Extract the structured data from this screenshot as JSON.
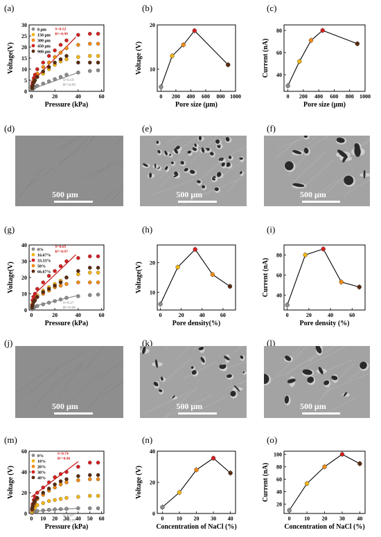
{
  "panels": {
    "a": "(a)",
    "b": "(b)",
    "c": "(c)",
    "d": "(d)",
    "e": "(e)",
    "f": "(f)",
    "g": "(g)",
    "h": "(h)",
    "i": "(i)",
    "j": "(j)",
    "k": "(k)",
    "l": "(l)",
    "m": "(m)",
    "n": "(n)",
    "o": "(o)"
  },
  "colors": {
    "gray": "#8c8c8c",
    "gold": "#f2b515",
    "orange": "#f08a12",
    "red": "#d42020",
    "brown": "#5a2a10",
    "fit_red": "#cc1111",
    "fit_gray": "#8c8c8c"
  },
  "sem_images": {
    "d": {
      "scale": "500 μm",
      "texture": "smooth"
    },
    "e": {
      "scale": "500 μm",
      "texture": "porous-dense"
    },
    "f": {
      "scale": "500 μm",
      "texture": "porous-large"
    },
    "j": {
      "scale": "500 μm",
      "texture": "smooth"
    },
    "k": {
      "scale": "500 μm",
      "texture": "porous-medium"
    },
    "l": {
      "scale": "500 μm",
      "texture": "porous-large"
    }
  },
  "chart_data": [
    {
      "id": "a",
      "type": "scatter",
      "xlabel": "Pressure (kPa)",
      "ylabel": "Voltage(V)",
      "xlim": [
        -2,
        62
      ],
      "ylim": [
        0,
        30
      ],
      "xticks": [
        0,
        20,
        40,
        60
      ],
      "yticks": [
        0,
        5,
        10,
        15,
        20,
        25,
        30
      ],
      "x": [
        0.5,
        1,
        2,
        3,
        5,
        10,
        15,
        20,
        25,
        30,
        40,
        50,
        57
      ],
      "series": [
        {
          "name": "0 μm",
          "color": "gray",
          "values": [
            0.5,
            1,
            1.5,
            2,
            2.5,
            3.5,
            4.5,
            5.5,
            6.5,
            7.5,
            8.5,
            9.2,
            9.5
          ]
        },
        {
          "name": "150 μm",
          "color": "gold",
          "values": [
            1.5,
            3,
            4,
            5,
            6.5,
            8,
            10,
            12,
            13.5,
            14.5,
            15.5,
            16,
            16
          ]
        },
        {
          "name": "300 μm",
          "color": "orange",
          "values": [
            2,
            3.5,
            5,
            6.5,
            8,
            11,
            13,
            15.5,
            17.5,
            19.5,
            21,
            21.5,
            21.5
          ]
        },
        {
          "name": "450 μm",
          "color": "red",
          "values": [
            2.5,
            4,
            6,
            7.5,
            10,
            13,
            16,
            18.5,
            21,
            23,
            25.5,
            26,
            26
          ]
        },
        {
          "name": "900 μm",
          "color": "brown",
          "values": [
            1.5,
            2.5,
            4,
            5,
            6.5,
            9,
            11,
            13,
            14.5,
            16,
            13,
            13,
            13
          ]
        }
      ],
      "fits": [
        {
          "color": "fit_red",
          "x": [
            0,
            38
          ],
          "y": [
            4,
            24.5
          ],
          "labels": [
            "S=0.52",
            "R²=0.99"
          ]
        },
        {
          "color": "fit_gray",
          "x": [
            0,
            40
          ],
          "y": [
            1,
            8.5
          ],
          "labels": [
            "S=0.19",
            "R²=0.99"
          ]
        }
      ],
      "legend": "top-left"
    },
    {
      "id": "b",
      "type": "line",
      "xlabel": "Pore size (μm)",
      "ylabel": "Voltage (V)",
      "xlim": [
        -50,
        1000
      ],
      "ylim": [
        5,
        20
      ],
      "xticks": [
        0,
        200,
        400,
        600,
        800,
        1000
      ],
      "yticks": [
        10,
        20
      ],
      "x": [
        0,
        150,
        300,
        450,
        900
      ],
      "colors": [
        "gray",
        "gold",
        "orange",
        "red",
        "brown"
      ],
      "values": [
        6,
        13,
        15.5,
        18.7,
        11
      ]
    },
    {
      "id": "c",
      "type": "line",
      "xlabel": "Pore size (μm)",
      "ylabel": "Current (nA)",
      "xlim": [
        -50,
        1000
      ],
      "ylim": [
        25,
        85
      ],
      "xticks": [
        0,
        200,
        400,
        600,
        800,
        1000
      ],
      "yticks": [
        40,
        60,
        80
      ],
      "x": [
        0,
        150,
        300,
        450,
        900
      ],
      "colors": [
        "gray",
        "gold",
        "orange",
        "red",
        "brown"
      ],
      "values": [
        30,
        52,
        71,
        80,
        68
      ]
    },
    {
      "id": "g",
      "type": "scatter",
      "xlabel": "Pressure (kPa)",
      "ylabel": "Voltage(V)",
      "xlim": [
        -2,
        62
      ],
      "ylim": [
        0,
        40
      ],
      "xticks": [
        0,
        20,
        40,
        60
      ],
      "yticks": [
        0,
        10,
        20,
        30,
        40
      ],
      "x": [
        0.5,
        1,
        2,
        3,
        5,
        10,
        15,
        20,
        25,
        30,
        40,
        50,
        57
      ],
      "series": [
        {
          "name": "0%",
          "color": "gray",
          "values": [
            0.5,
            1,
            1.5,
            2,
            2.5,
            3.5,
            4.5,
            5.5,
            6.5,
            7.5,
            8.5,
            9.2,
            9.5
          ]
        },
        {
          "name": "16.67%",
          "color": "gold",
          "values": [
            2,
            4,
            6,
            7,
            9,
            12,
            14,
            16,
            18,
            20,
            22,
            23,
            23
          ]
        },
        {
          "name": "33.33%",
          "color": "red",
          "values": [
            3,
            6,
            8,
            10,
            13,
            17,
            21,
            24,
            27,
            30,
            32,
            33,
            33
          ]
        },
        {
          "name": "50%",
          "color": "orange",
          "values": [
            2,
            4,
            5,
            6,
            8,
            10,
            12,
            14,
            15,
            16,
            17,
            17,
            17
          ]
        },
        {
          "name": "66.67%",
          "color": "brown",
          "values": [
            1.5,
            3,
            5,
            6,
            8,
            11,
            13,
            15,
            17,
            20,
            24,
            26,
            26
          ]
        }
      ],
      "fits": [
        {
          "color": "fit_red",
          "x": [
            0,
            38
          ],
          "y": [
            8,
            34
          ],
          "labels": [
            "S=0.65",
            "R²=0.97"
          ]
        },
        {
          "color": "fit_gray",
          "x": [
            0,
            40
          ],
          "y": [
            2,
            9
          ],
          "labels": [
            "S=0.17",
            "R²=0.98"
          ]
        }
      ],
      "legend": "top-left"
    },
    {
      "id": "h",
      "type": "line",
      "xlabel": "Pore density(%)",
      "ylabel": "Voltage(V)",
      "xlim": [
        -3,
        72
      ],
      "ylim": [
        4,
        26
      ],
      "xticks": [
        0,
        20,
        40,
        60
      ],
      "yticks": [
        10,
        20
      ],
      "x": [
        0,
        16.67,
        33.33,
        50,
        66.67
      ],
      "colors": [
        "gray",
        "gold",
        "red",
        "orange",
        "brown"
      ],
      "values": [
        6,
        18.5,
        24.5,
        16,
        12
      ]
    },
    {
      "id": "i",
      "type": "line",
      "xlabel": "Pore density (%)",
      "ylabel": "Current (nA)",
      "xlim": [
        -3,
        72
      ],
      "ylim": [
        25,
        90
      ],
      "xticks": [
        0,
        20,
        40,
        60
      ],
      "yticks": [
        40,
        60,
        80
      ],
      "x": [
        0,
        16.67,
        33.33,
        50,
        66.67
      ],
      "colors": [
        "gray",
        "gold",
        "red",
        "orange",
        "brown"
      ],
      "values": [
        30,
        80,
        86,
        53,
        48
      ]
    },
    {
      "id": "m",
      "type": "scatter",
      "xlabel": "Pressure (kPa)",
      "ylabel": "Voltage (V)",
      "xlim": [
        -2,
        62
      ],
      "ylim": [
        0,
        60
      ],
      "xticks": [
        0,
        10,
        20,
        30,
        40,
        50,
        60
      ],
      "yticks": [
        0,
        20,
        40,
        60
      ],
      "x": [
        0.5,
        1,
        2,
        3,
        5,
        10,
        15,
        20,
        25,
        30,
        40,
        50,
        57
      ],
      "series": [
        {
          "name": "0%",
          "color": "gray",
          "values": [
            0.5,
            1,
            1.5,
            2,
            2.5,
            3,
            3.5,
            4,
            4.2,
            4.5,
            5,
            5,
            5
          ]
        },
        {
          "name": "10%",
          "color": "gold",
          "values": [
            1.5,
            3,
            5,
            6,
            8,
            10,
            12,
            13,
            14,
            15,
            16,
            17,
            17
          ]
        },
        {
          "name": "20%",
          "color": "orange",
          "values": [
            3,
            5,
            8,
            10,
            14,
            18,
            22,
            25,
            28,
            30,
            32,
            33,
            33
          ]
        },
        {
          "name": "30%",
          "color": "red",
          "values": [
            5,
            9,
            13,
            16,
            20,
            25,
            30,
            35,
            38,
            40,
            45,
            49,
            49
          ]
        },
        {
          "name": "40%",
          "color": "brown",
          "values": [
            4,
            7,
            10,
            12,
            15,
            20,
            24,
            28,
            31,
            33,
            36,
            37,
            37
          ]
        }
      ],
      "fits": [
        {
          "color": "fit_red",
          "x": [
            0,
            40
          ],
          "y": [
            16,
            50
          ],
          "labels": [
            "S=0.74",
            "R²=0.96"
          ]
        },
        {
          "color": "fit_gray",
          "x": [
            0,
            40
          ],
          "y": [
            2,
            5
          ],
          "labels": [
            "S=0.07",
            "R²=0.99"
          ]
        }
      ],
      "legend": "top-left"
    },
    {
      "id": "n",
      "type": "line",
      "xlabel": "Concentration of NaCl (%)",
      "ylabel": "Voltage (V)",
      "xlim": [
        -3,
        43
      ],
      "ylim": [
        0,
        40
      ],
      "xticks": [
        0,
        10,
        20,
        30,
        40
      ],
      "yticks": [
        0,
        20,
        40
      ],
      "x": [
        0,
        10,
        20,
        30,
        40
      ],
      "colors": [
        "gray",
        "gold",
        "orange",
        "red",
        "brown"
      ],
      "values": [
        4,
        13.5,
        28,
        35.5,
        26
      ]
    },
    {
      "id": "o",
      "type": "line",
      "xlabel": "Concentration of NaCl (%)",
      "ylabel": "Current (nA)",
      "xlim": [
        -3,
        43
      ],
      "ylim": [
        5,
        105
      ],
      "xticks": [
        0,
        10,
        20,
        30,
        40
      ],
      "yticks": [
        20,
        40,
        60,
        80,
        100
      ],
      "x": [
        0,
        10,
        20,
        30,
        40
      ],
      "colors": [
        "gray",
        "gold",
        "orange",
        "red",
        "brown"
      ],
      "values": [
        10,
        53,
        80,
        100,
        85
      ]
    }
  ]
}
